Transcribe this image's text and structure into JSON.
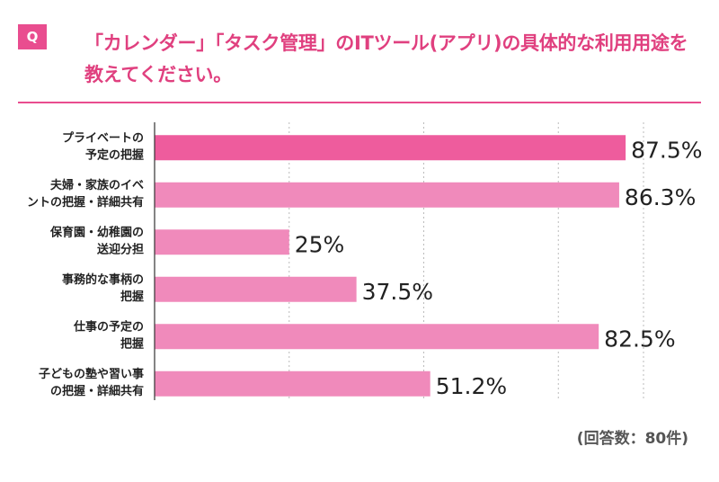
{
  "question": {
    "badge": "Q",
    "text": "「カレンダー」「タスク管理」のITツール(アプリ)の具体的な利用用途を教えてください。"
  },
  "note": "(回答数：80件)",
  "colors": {
    "accent": "#e94d8f",
    "bar_top": "#ee5c9d",
    "bar": "#f08abb",
    "grid": "#bbbbbb"
  },
  "chart_data": {
    "type": "bar",
    "orientation": "horizontal",
    "categories": [
      [
        "プライベートの",
        "予定の把握"
      ],
      [
        "夫婦・家族のイベ",
        "ントの把握・詳細共有"
      ],
      [
        "保育園・幼稚園の",
        "送迎分担"
      ],
      [
        "事務的な事柄の",
        "把握"
      ],
      [
        "仕事の予定の",
        "把握"
      ],
      [
        "子どもの塾や習い事",
        "の把握・詳細共有"
      ]
    ],
    "values": [
      87.5,
      86.3,
      25,
      37.5,
      82.5,
      51.2
    ],
    "value_labels": [
      "87.5%",
      "86.3%",
      "25%",
      "37.5%",
      "82.5%",
      "51.2%"
    ],
    "xlim": [
      0,
      100
    ],
    "grid": true,
    "legend": false
  }
}
